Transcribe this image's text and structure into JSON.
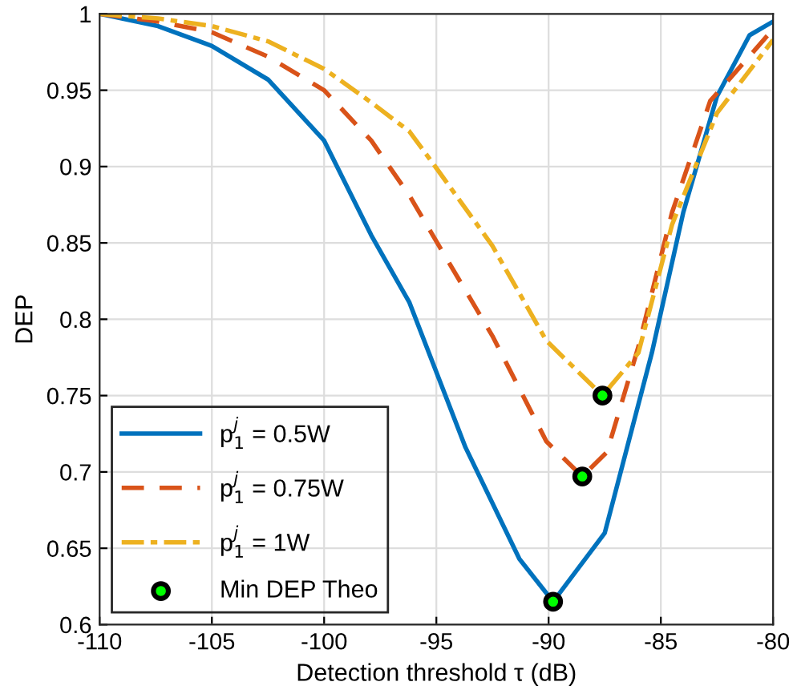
{
  "chart_data": {
    "type": "line",
    "xlabel": "Detection threshold τ (dB)",
    "ylabel": "DEP",
    "xlim": [
      -110,
      -80
    ],
    "ylim": [
      0.6,
      1
    ],
    "xticks": [
      -110,
      -105,
      -100,
      -95,
      -90,
      -85,
      -80
    ],
    "yticks": [
      0.6,
      0.65,
      0.7,
      0.75,
      0.8,
      0.85,
      0.9,
      0.95,
      1
    ],
    "grid": true,
    "legend": "bottom left",
    "series": [
      {
        "name": "p$^{j}$$_{1}$ = 0.5W",
        "color": "#0072bd",
        "line_style": "solid",
        "marker": "none",
        "x": [
          -110,
          -107.4,
          -105,
          -102.5,
          -100,
          -97.9,
          -96.2,
          -93.7,
          -91.3,
          -89.8,
          -87.5,
          -85.4,
          -84.0,
          -82.5,
          -81.05,
          -80
        ],
        "values": [
          1.0,
          0.992,
          0.979,
          0.957,
          0.917,
          0.855,
          0.811,
          0.716,
          0.643,
          0.615,
          0.66,
          0.778,
          0.87,
          0.946,
          0.986,
          0.995
        ]
      },
      {
        "name": "p$^{j}$$_{1}$ = 0.75W",
        "color": "#d95319",
        "line_style": "dashed",
        "marker": "none",
        "x": [
          -110,
          -107.4,
          -105,
          -102.5,
          -100,
          -97.9,
          -96.2,
          -95,
          -92.5,
          -90.1,
          -88.5,
          -87.4,
          -86.0,
          -84.5,
          -82.8,
          -80
        ],
        "values": [
          1.0,
          0.995,
          0.988,
          0.972,
          0.95,
          0.917,
          0.881,
          0.851,
          0.789,
          0.72,
          0.697,
          0.713,
          0.782,
          0.87,
          0.943,
          0.99
        ]
      },
      {
        "name": "p$^{j}$$_{1}$ = 1W",
        "color": "#edb120",
        "line_style": "dashdot",
        "marker": "none",
        "x": [
          -110,
          -107.4,
          -105,
          -102.5,
          -100,
          -97.9,
          -96.2,
          -95,
          -92.5,
          -90.1,
          -87.6,
          -86.0,
          -84.5,
          -82.5,
          -80
        ],
        "values": [
          1.0,
          0.997,
          0.992,
          0.982,
          0.964,
          0.942,
          0.923,
          0.899,
          0.848,
          0.786,
          0.75,
          0.778,
          0.862,
          0.935,
          0.983
        ]
      },
      {
        "name": "Min DEP Theo",
        "type": "scatter",
        "color": "#00ff00",
        "marker": "circle",
        "x": [
          -89.8,
          -88.5,
          -87.6
        ],
        "values": [
          0.615,
          0.697,
          0.75
        ]
      }
    ]
  }
}
